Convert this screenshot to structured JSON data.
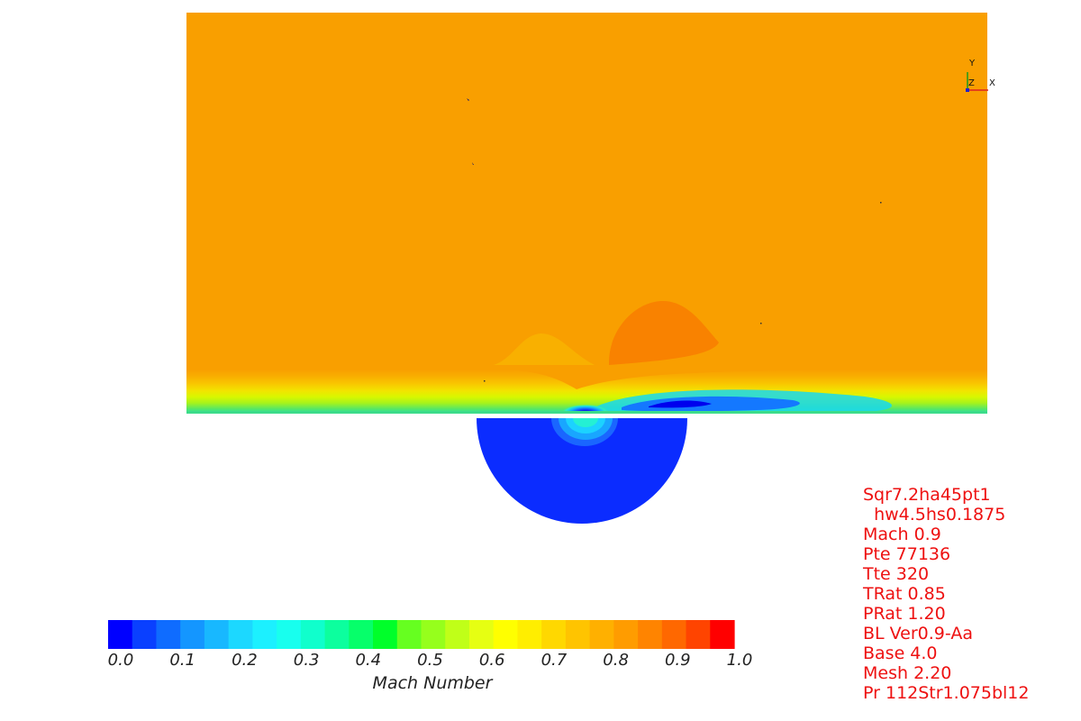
{
  "colorbar": {
    "title": "Mach Number",
    "ticks": [
      "0.0",
      "0.1",
      "0.2",
      "0.3",
      "0.4",
      "0.5",
      "0.6",
      "0.7",
      "0.8",
      "0.9",
      "1.0"
    ],
    "colors": [
      "#0000ff",
      "#0a40ff",
      "#0f6cff",
      "#1496ff",
      "#18b8ff",
      "#1cd8ff",
      "#1cf0ff",
      "#18ffee",
      "#10ffcc",
      "#0cff9e",
      "#06ff6a",
      "#00ff2a",
      "#66ff20",
      "#96ff1c",
      "#c0ff18",
      "#e6ff12",
      "#ffff00",
      "#ffee00",
      "#ffd800",
      "#ffc400",
      "#ffb000",
      "#ff9c00",
      "#ff8400",
      "#ff6800",
      "#ff4400",
      "#ff0000"
    ],
    "range": [
      0.0,
      1.0
    ]
  },
  "axes_triad": {
    "y": "Y",
    "z": "Z",
    "x": "X"
  },
  "annotations": [
    "Sqr7.2ha45pt1",
    "  hw4.5hs0.1875",
    "Mach 0.9",
    "Pte 77136",
    "Tte 320",
    "TRat 0.85",
    "PRat 1.20",
    "BL Ver0.9-Aa",
    "Base 4.0",
    "Mesh 2.20",
    "Pr 112Str1.075bl12"
  ],
  "field": {
    "freestream_color": "#f99f00",
    "high_bump_color": "#f98200",
    "low_bump_color": "#f9b000",
    "inlet_color": "#0b2cff"
  }
}
